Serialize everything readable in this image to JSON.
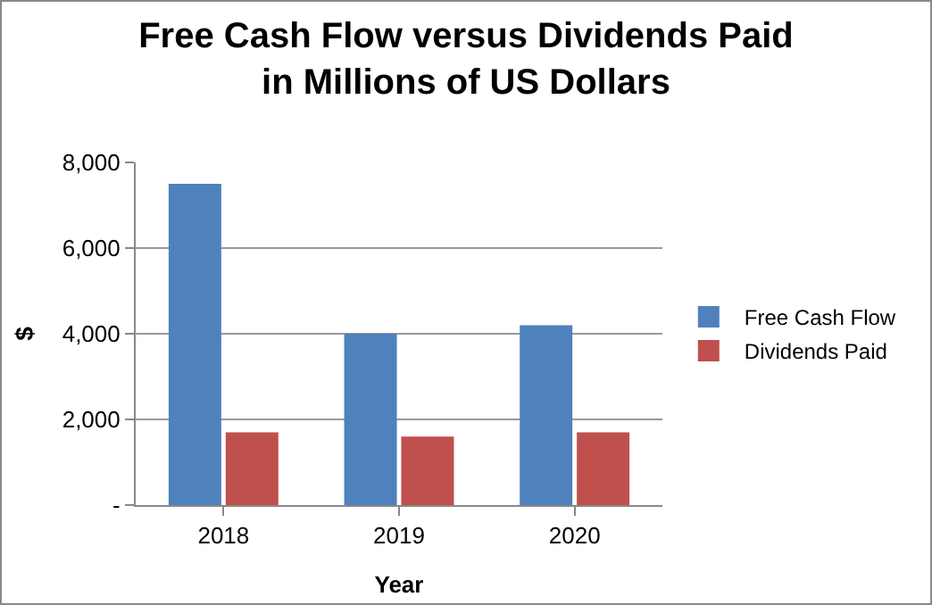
{
  "chart_data": {
    "type": "bar",
    "title": "Free Cash Flow versus Dividends Paid\nin Millions of US Dollars",
    "xlabel": "Year",
    "ylabel": "$",
    "categories": [
      "2018",
      "2019",
      "2020"
    ],
    "series": [
      {
        "name": "Free Cash Flow",
        "color": "#4f81bd",
        "values": [
          7500,
          4000,
          4200
        ]
      },
      {
        "name": "Dividends Paid",
        "color": "#c0504d",
        "values": [
          1700,
          1600,
          1700
        ]
      }
    ],
    "ylim": [
      0,
      8000
    ],
    "yticks": [
      {
        "value": 0,
        "label": "-"
      },
      {
        "value": 2000,
        "label": "2,000"
      },
      {
        "value": 4000,
        "label": "4,000"
      },
      {
        "value": 6000,
        "label": "6,000"
      },
      {
        "value": 8000,
        "label": "8,000"
      }
    ],
    "grid": "y",
    "legend": "right"
  }
}
